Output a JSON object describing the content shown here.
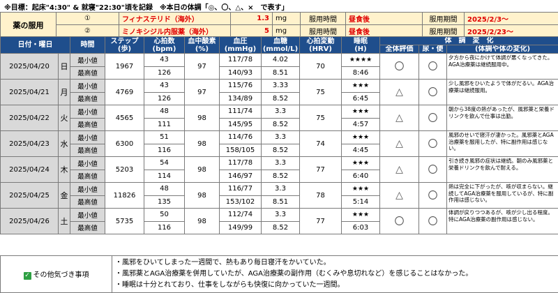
{
  "header_note": "※目標：起床\"4:30\" & 就寝\"22:30\"頃を記録　※本日の体調「◎、〇、△、×　で表す」",
  "medications": {
    "label": "薬の服用",
    "items": [
      {
        "no": "①",
        "name": "フィナステリド（海外）",
        "dose": "1.3",
        "unit": "mg",
        "timing_label": "服用時間",
        "timing": "昼食後",
        "period_label": "服用期間",
        "period": "2025/2/3～"
      },
      {
        "no": "②",
        "name": "ミノキシジル内服薬（海外）",
        "dose": "5",
        "unit": "mg",
        "timing_label": "服用時間",
        "timing": "昼食後",
        "period_label": "服用期間",
        "period": "2025/2/23～"
      }
    ]
  },
  "table": {
    "headers": {
      "date": "日付・曜日",
      "time": "時間",
      "steps": "ステップ",
      "steps_unit": "(歩)",
      "hr": "心拍数",
      "hr_unit": "(bpm)",
      "spo2": "血中酸素",
      "spo2_unit": "(%)",
      "bp": "血圧",
      "bp_unit": "(mmHg)",
      "glucose": "血糖",
      "glucose_unit": "(mmol/L)",
      "hrv": "心拍変動",
      "hrv_unit": "(HRV)",
      "sleep": "睡眠",
      "sleep_unit": "(H)",
      "condition": "体　調　変　化",
      "overall": "全体評価",
      "urine": "尿・便",
      "change": "(体調や体の変化)"
    },
    "min_label": "最小値",
    "max_label": "最高値",
    "rows": [
      {
        "date": "2025/04/20",
        "dow": "日",
        "steps": "1967",
        "hr_min": "43",
        "hr_max": "126",
        "spo2": "97",
        "bp_min": "117/78",
        "bp_max": "140/93",
        "glu_min": "4.02",
        "glu_max": "8.51",
        "hrv": "70",
        "stars": "★★★★",
        "sleep": "8:46",
        "overall": "〇",
        "urine": "〇",
        "remark": "夕方から夜にかけて体調が悪くなってきた。AGA治療薬は継続服用中。"
      },
      {
        "date": "2025/04/21",
        "dow": "月",
        "steps": "4769",
        "hr_min": "43",
        "hr_max": "126",
        "spo2": "97",
        "bp_min": "115/76",
        "bp_max": "134/89",
        "glu_min": "3.33",
        "glu_max": "8.52",
        "hrv": "75",
        "stars": "★★★",
        "sleep": "6:45",
        "overall": "△",
        "urine": "〇",
        "remark": "少し風邪をひいたようで体がだるい。AGA治療薬は継続服用。"
      },
      {
        "date": "2025/04/22",
        "dow": "火",
        "steps": "4565",
        "hr_min": "48",
        "hr_max": "111",
        "spo2": "98",
        "bp_min": "111/74",
        "bp_max": "145/95",
        "glu_min": "3.3",
        "glu_max": "8.52",
        "hrv": "75",
        "stars": "★★★",
        "sleep": "4:57",
        "overall": "△",
        "urine": "〇",
        "remark": "朝から38度の熱があったが、風邪薬と栄養ドリンクを飲んで仕事は出勤。"
      },
      {
        "date": "2025/04/23",
        "dow": "水",
        "steps": "6300",
        "hr_min": "51",
        "hr_max": "116",
        "spo2": "98",
        "bp_min": "114/76",
        "bp_max": "158/105",
        "glu_min": "3.3",
        "glu_max": "8.52",
        "hrv": "74",
        "stars": "★★★",
        "sleep": "4:45",
        "overall": "△",
        "urine": "〇",
        "remark": "風邪のせいで寝汗が凄かった。風邪薬とAGA治療薬を服用したが、特に副作用は感じない。"
      },
      {
        "date": "2025/04/24",
        "dow": "木",
        "steps": "5203",
        "hr_min": "54",
        "hr_max": "114",
        "spo2": "98",
        "bp_min": "117/78",
        "bp_max": "146/97",
        "glu_min": "3.3",
        "glu_max": "8.52",
        "hrv": "77",
        "stars": "★★★",
        "sleep": "6:40",
        "overall": "△",
        "urine": "〇",
        "remark": "引き続き風邪の症状は継続。朝のみ風邪薬と栄養ドリンクを飲んで耐える。"
      },
      {
        "date": "2025/04/25",
        "dow": "金",
        "steps": "11826",
        "hr_min": "48",
        "hr_max": "135",
        "spo2": "98",
        "bp_min": "116/77",
        "bp_max": "153/102",
        "glu_min": "3.3",
        "glu_max": "8.51",
        "hrv": "78",
        "stars": "★★★",
        "sleep": "5:14",
        "overall": "△",
        "urine": "〇",
        "remark": "熱は完全に下がったが、咳が収まらない。継続してAGA治療薬を服用しているが、特に副作用は感じない。"
      },
      {
        "date": "2025/04/26",
        "dow": "土",
        "steps": "5735",
        "hr_min": "50",
        "hr_max": "116",
        "spo2": "98",
        "bp_min": "112/74",
        "bp_max": "149/99",
        "glu_min": "3.3",
        "glu_max": "8.52",
        "hrv": "77",
        "stars": "★★★",
        "sleep": "6:03",
        "overall": "〇",
        "urine": "〇",
        "remark": "体調が戻りつつあるが、咳が少し出る程度。特にAGA治療薬の副作用は感じない。"
      }
    ]
  },
  "other": {
    "label": "その他気づき事項",
    "lines": [
      "・風邪をひいてしまった一週間で、熱もあり毎日寝汗をかいていた。",
      "・風邪薬とAGA治療薬を併用していたが、AGA治療薬の副作用（むくみや息切れなど）を感じることはなかった。",
      "・睡眠は十分とれており、仕事をしながらも快復に向かっていた一週間。"
    ]
  }
}
